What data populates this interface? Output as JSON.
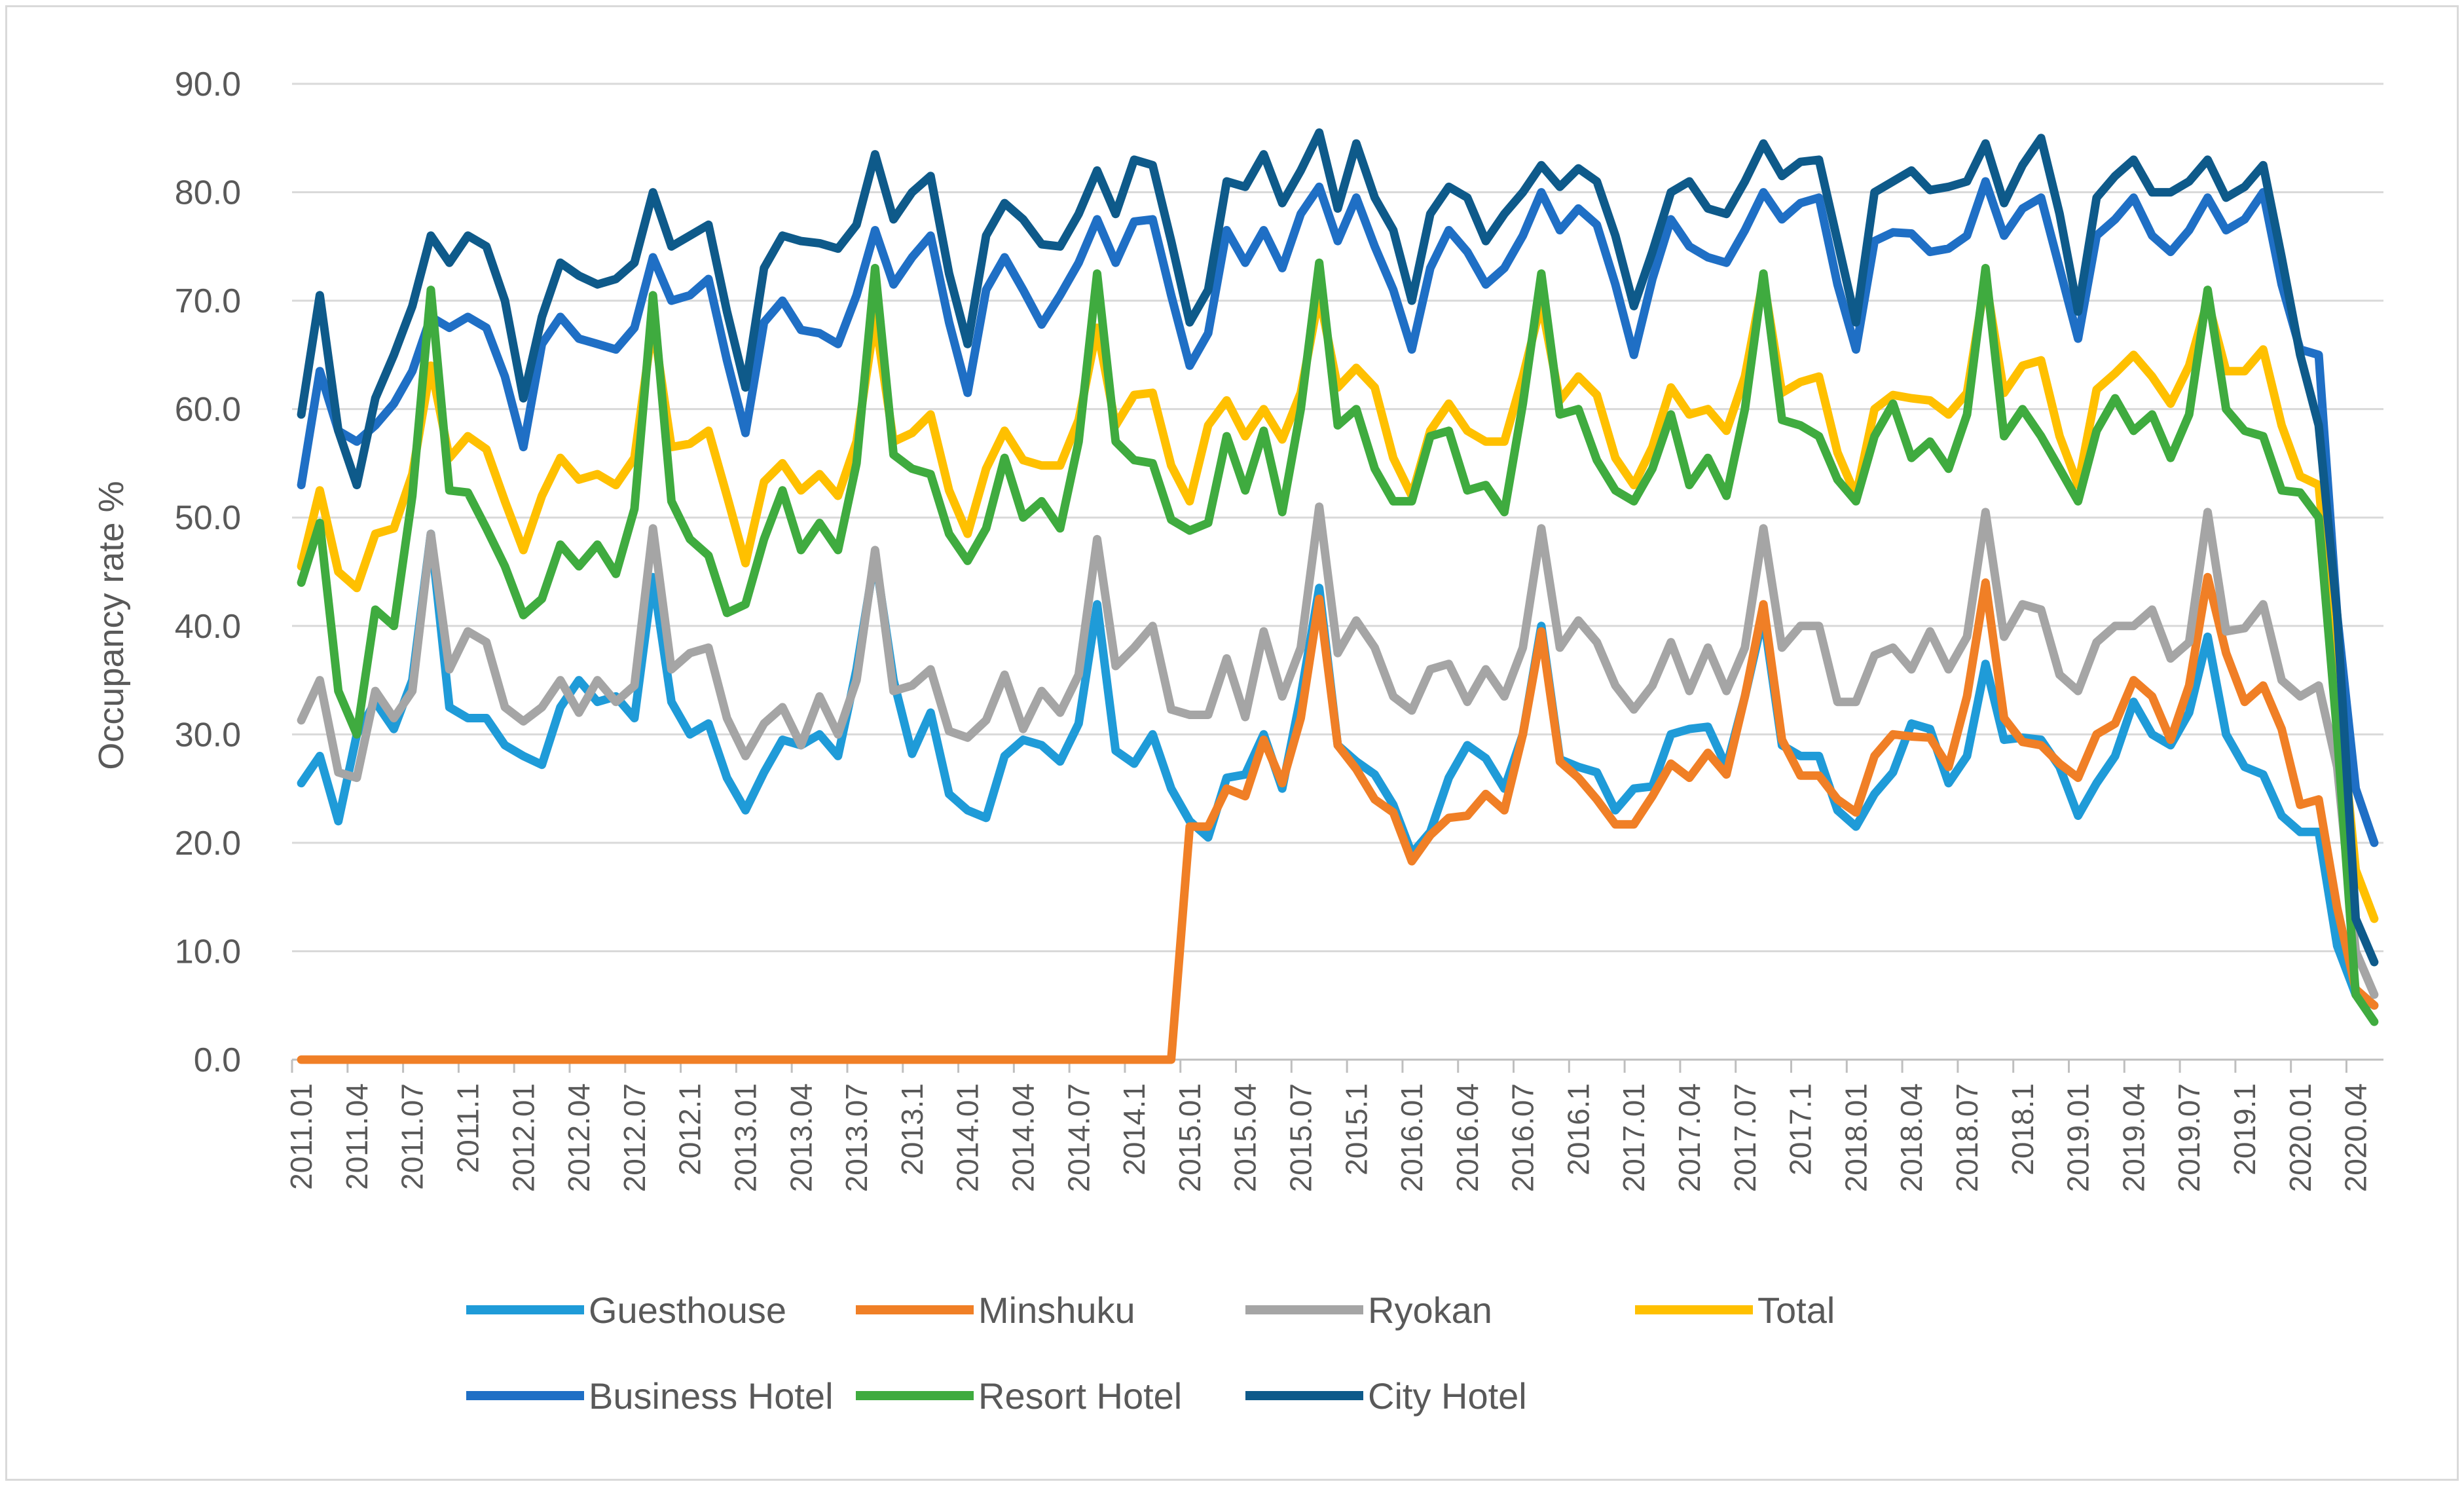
{
  "chart_data": {
    "type": "line",
    "title": "",
    "xlabel": "",
    "ylabel": "Occupancy rate %",
    "ylim": [
      0,
      90
    ],
    "yticks": [
      "0.0",
      "10.0",
      "20.0",
      "30.0",
      "40.0",
      "50.0",
      "60.0",
      "70.0",
      "80.0",
      "90.0"
    ],
    "grid": true,
    "legend_position": "bottom",
    "x_tick_labels": [
      "2011.01",
      "2011.04",
      "2011.07",
      "2011.1",
      "2012.01",
      "2012.04",
      "2012.07",
      "2012.1",
      "2013.01",
      "2013.04",
      "2013.07",
      "2013.1",
      "2014.01",
      "2014.04",
      "2014.07",
      "2014.1",
      "2015.01",
      "2015.04",
      "2015.07",
      "2015.1",
      "2016.01",
      "2016.04",
      "2016.07",
      "2016.1",
      "2017.01",
      "2017.04",
      "2017.07",
      "2017.1",
      "2018.01",
      "2018.04",
      "2018.07",
      "2018.1",
      "2019.01",
      "2019.04",
      "2019.07",
      "2019.1",
      "2020.01",
      "2020.04"
    ],
    "series": [
      {
        "name": "Guesthouse",
        "color": "#1f9bd8",
        "values": [
          25.5,
          28,
          22,
          30,
          33,
          30.5,
          35,
          48.5,
          32.5,
          31.5,
          31.5,
          29,
          28,
          27.2,
          32.5,
          35,
          33,
          33.5,
          31.5,
          44.5,
          33,
          30,
          31,
          26,
          23,
          26.5,
          29.5,
          29,
          30,
          28,
          36,
          46.5,
          35,
          28.2,
          32,
          24.5,
          23,
          22.3,
          28,
          29.5,
          29,
          27.5,
          31,
          42,
          28.5,
          27.3,
          30,
          25,
          22,
          20.5,
          26,
          26.3,
          30,
          25,
          33.5,
          43.5,
          29,
          27.5,
          26.3,
          23.5,
          19,
          21,
          26,
          29,
          27.8,
          25,
          30,
          40,
          27.7,
          27,
          26.5,
          23,
          25,
          25.2,
          30,
          30.5,
          30.7,
          27,
          33.5,
          41,
          29,
          28,
          28,
          23,
          21.5,
          24.5,
          26.5,
          31,
          30.5,
          25.5,
          28,
          36.5,
          29.5,
          29.7,
          29.5,
          27,
          22.5,
          25.5,
          28,
          33,
          30,
          29,
          32,
          39,
          30,
          27,
          26.3,
          22.5,
          21,
          21,
          10.5,
          6,
          5
        ]
      },
      {
        "name": "Minshuku",
        "color": "#f07f26",
        "values": [
          0,
          0,
          0,
          0,
          0,
          0,
          0,
          0,
          0,
          0,
          0,
          0,
          0,
          0,
          0,
          0,
          0,
          0,
          0,
          0,
          0,
          0,
          0,
          0,
          0,
          0,
          0,
          0,
          0,
          0,
          0,
          0,
          0,
          0,
          0,
          0,
          0,
          0,
          0,
          0,
          0,
          0,
          0,
          0,
          0,
          0,
          0,
          0,
          21.5,
          21.5,
          25,
          24.3,
          29.5,
          25.5,
          31.5,
          42.5,
          29,
          26.8,
          24,
          22.8,
          18.3,
          20.7,
          22.3,
          22.5,
          24.5,
          23,
          30,
          39.5,
          27.5,
          26,
          24,
          21.7,
          21.7,
          24.3,
          27.3,
          26,
          28.3,
          26.3,
          33.5,
          42,
          29.5,
          26.2,
          26.2,
          24,
          22.8,
          28,
          30,
          29.8,
          29.7,
          27,
          33.5,
          44,
          31.5,
          29.3,
          29,
          27.3,
          26,
          30,
          31,
          35,
          33.5,
          29.5,
          34.5,
          44.5,
          37.5,
          33,
          34.5,
          30.5,
          23.5,
          24,
          14,
          6.5,
          5
        ]
      },
      {
        "name": "Ryokan",
        "color": "#a5a5a5",
        "values": [
          31.3,
          35,
          26.5,
          26,
          34,
          31.5,
          34,
          48.5,
          36,
          39.5,
          38.5,
          32.5,
          31.2,
          32.5,
          35,
          32,
          35,
          33,
          34.5,
          49,
          36,
          37.5,
          38,
          31.5,
          28,
          31,
          32.5,
          29,
          33.5,
          30,
          35,
          47,
          34,
          34.5,
          36,
          30.3,
          29.7,
          31.3,
          35.5,
          30.5,
          34,
          32,
          35.5,
          48,
          36.3,
          38,
          40,
          32.3,
          31.8,
          31.8,
          37,
          31.6,
          39.5,
          33.5,
          38,
          51,
          37.5,
          40.5,
          38,
          33.5,
          32.2,
          36,
          36.5,
          33,
          36,
          33.5,
          38,
          49,
          38,
          40.5,
          38.5,
          34.5,
          32.3,
          34.5,
          38.5,
          34,
          38,
          34,
          38,
          49,
          38,
          40,
          40,
          33,
          33,
          37.3,
          38,
          36,
          39.5,
          36,
          39,
          50.5,
          39,
          42,
          41.5,
          35.5,
          34,
          38.5,
          40,
          40,
          41.5,
          37,
          38.5,
          50.5,
          39.5,
          39.8,
          42,
          35,
          33.5,
          34.5,
          27,
          10,
          6
        ]
      },
      {
        "name": "Total",
        "color": "#ffc000",
        "values": [
          45.5,
          52.5,
          45,
          43.5,
          48.5,
          49,
          54,
          64,
          55.5,
          57.5,
          56.3,
          51.5,
          47,
          52,
          55.5,
          53.5,
          54,
          53,
          55.5,
          68,
          56.5,
          56.8,
          58,
          52,
          45.8,
          53.3,
          55,
          52.5,
          54,
          52,
          57,
          68.5,
          57,
          57.8,
          59.5,
          52.5,
          48.5,
          54.5,
          58,
          55.3,
          54.8,
          54.8,
          59,
          67.5,
          58.5,
          61.3,
          61.5,
          54.8,
          51.5,
          58.5,
          60.8,
          57.5,
          60,
          57.2,
          61.5,
          70.5,
          62,
          63.8,
          62,
          55.5,
          52,
          58,
          60.5,
          58,
          57,
          57,
          63,
          69.8,
          60.8,
          63,
          61.3,
          55.5,
          53,
          56.5,
          62,
          59.5,
          60,
          58,
          63,
          72,
          61.5,
          62.5,
          63,
          56,
          52,
          60,
          61.3,
          61,
          60.8,
          59.5,
          61.5,
          72,
          61.5,
          64,
          64.5,
          57.5,
          53,
          61.8,
          63.3,
          65,
          63,
          60.5,
          64,
          70,
          63.5,
          63.5,
          65.5,
          58.5,
          53.8,
          53,
          35,
          17.5,
          13
        ]
      },
      {
        "name": "Business Hotel",
        "color": "#1f6fc5",
        "values": [
          53,
          63.5,
          58,
          57,
          58.5,
          60.5,
          63.5,
          68.5,
          67.5,
          68.5,
          67.5,
          63,
          56.5,
          66,
          68.5,
          66.5,
          66,
          65.5,
          67.5,
          74,
          70,
          70.5,
          72,
          64.5,
          57.8,
          68,
          70,
          67.3,
          67,
          66,
          70.5,
          76.5,
          71.5,
          74,
          76,
          68,
          61.5,
          71,
          74,
          71,
          67.8,
          70.5,
          73.5,
          77.5,
          73.5,
          77.3,
          77.5,
          70.5,
          64,
          67,
          76.5,
          73.5,
          76.5,
          73,
          78,
          80.5,
          75.5,
          79.5,
          75,
          71,
          65.5,
          73,
          76.5,
          74.5,
          71.5,
          73,
          76,
          80,
          76.5,
          78.5,
          77,
          71.5,
          65,
          72,
          77.5,
          75,
          74,
          73.5,
          76.5,
          80,
          77.5,
          79,
          79.5,
          71.5,
          65.5,
          75.5,
          76.3,
          76.2,
          74.5,
          74.8,
          76,
          81,
          76,
          78.5,
          79.5,
          73,
          66.5,
          76,
          77.5,
          79.5,
          76,
          74.5,
          76.5,
          79.5,
          76.5,
          77.5,
          80,
          71.5,
          65.5,
          65,
          41,
          25,
          20
        ]
      },
      {
        "name": "Resort Hotel",
        "color": "#3fab3f",
        "values": [
          44,
          49.5,
          34,
          30,
          41.5,
          40,
          52,
          71,
          52.5,
          52.3,
          49,
          45.5,
          41,
          42.5,
          47.5,
          45.5,
          47.5,
          44.8,
          50.8,
          70.5,
          51.5,
          48,
          46.5,
          41.2,
          42,
          48,
          52.5,
          47,
          49.5,
          47,
          55,
          73,
          55.8,
          54.5,
          54,
          48.5,
          46,
          49,
          55.5,
          50,
          51.5,
          49,
          57,
          72.5,
          57,
          55.3,
          55,
          49.8,
          48.8,
          49.5,
          57.5,
          52.5,
          58,
          50.5,
          60,
          73.5,
          58.5,
          60,
          54.5,
          51.5,
          51.5,
          57.5,
          58,
          52.5,
          53,
          50.5,
          60.5,
          72.5,
          59.5,
          60,
          55.3,
          52.5,
          51.5,
          54.5,
          59.5,
          53,
          55.5,
          52,
          60,
          72.5,
          59,
          58.5,
          57.5,
          53.5,
          51.5,
          57.5,
          60.5,
          55.5,
          57,
          54.5,
          59.5,
          73,
          57.5,
          60,
          57.5,
          54.5,
          51.5,
          58,
          61,
          58,
          59.5,
          55.5,
          59.5,
          71,
          60,
          58,
          57.5,
          52.5,
          52.3,
          50,
          30,
          6,
          3.5
        ]
      },
      {
        "name": "City Hotel",
        "color": "#0e5a8a",
        "values": [
          59.5,
          70.5,
          58,
          53,
          61,
          65,
          69.5,
          76,
          73.5,
          76,
          75,
          70,
          61,
          68.5,
          73.5,
          72.3,
          71.5,
          72,
          73.5,
          80,
          75,
          76,
          77,
          69,
          62,
          73,
          76,
          75.5,
          75.3,
          74.8,
          77,
          83.5,
          77.5,
          80,
          81.5,
          72.5,
          66,
          76,
          79,
          77.5,
          75.2,
          75,
          78,
          82,
          78,
          83,
          82.5,
          75.5,
          68,
          71,
          81,
          80.5,
          83.5,
          79,
          82,
          85.5,
          78.5,
          84.5,
          79.5,
          76.5,
          70,
          78,
          80.5,
          79.5,
          75.5,
          78,
          80,
          82.5,
          80.5,
          82.2,
          81,
          76,
          69.5,
          74.5,
          80,
          81,
          78.5,
          78,
          81,
          84.5,
          81.5,
          82.8,
          83,
          75.5,
          68,
          80,
          81,
          82,
          80.2,
          80.5,
          81,
          84.5,
          79,
          82.5,
          85,
          78,
          69,
          79.5,
          81.5,
          83,
          80,
          80,
          81,
          83,
          79.5,
          80.5,
          82.5,
          74,
          65,
          58.5,
          41,
          13,
          9
        ]
      }
    ]
  }
}
